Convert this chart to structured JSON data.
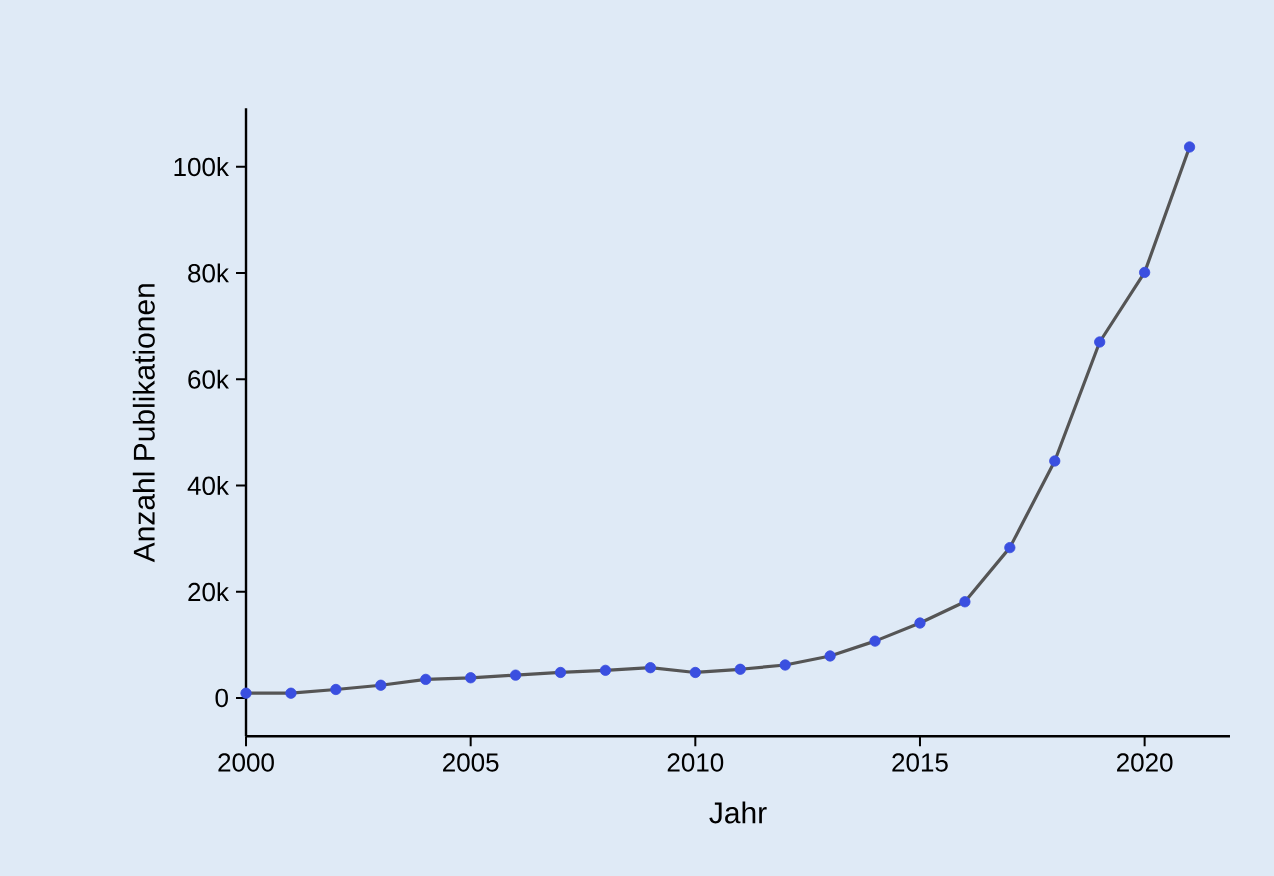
{
  "chart_data": {
    "type": "line",
    "xlabel": "Jahr",
    "ylabel": "Anzahl Publikationen",
    "x": [
      2000,
      2001,
      2002,
      2003,
      2004,
      2005,
      2006,
      2007,
      2008,
      2009,
      2010,
      2011,
      2012,
      2013,
      2014,
      2015,
      2016,
      2017,
      2018,
      2019,
      2020,
      2021
    ],
    "series": [
      {
        "color": "#555555",
        "values": [
          900,
          900,
          1600,
          2400,
          3500,
          3800,
          4300,
          4800,
          5200,
          5700,
          4800,
          5400,
          6200,
          7900,
          10700,
          14100,
          18100,
          28300,
          44600,
          67000,
          80100,
          103700
        ],
        "colors": [
          "#3a4fe0",
          "#3a4fe0",
          "#3a4fe0",
          "#3a4fe0",
          "#3a4fe0",
          "#3a4fe0",
          "#3a4fe0",
          "#3a4fe0",
          "#3a4fe0",
          "#3a4fe0",
          "#3a4fe0",
          "#3a4fe0",
          "#3a4fe0",
          "#3a4fe0",
          "#3a4fe0",
          "#3a4fe0",
          "#3a4fe0",
          "#3a4fe0",
          "#3a4fe0",
          "#3a4fe0",
          "#3a4fe0",
          "#3a4fe0"
        ]
      }
    ],
    "marker": "circle",
    "xlim": [
      2000,
      2021.9
    ],
    "ylim": [
      -7200,
      111000
    ],
    "xticks": [
      2000,
      2005,
      2010,
      2015,
      2020
    ],
    "yticks": [
      {
        "value": 0,
        "label": "0"
      },
      {
        "value": 20000,
        "label": "20k"
      },
      {
        "value": 40000,
        "label": "40k"
      },
      {
        "value": 60000,
        "label": "60k"
      },
      {
        "value": 80000,
        "label": "80k"
      },
      {
        "value": 100000,
        "label": "100k"
      }
    ],
    "grid": false
  }
}
